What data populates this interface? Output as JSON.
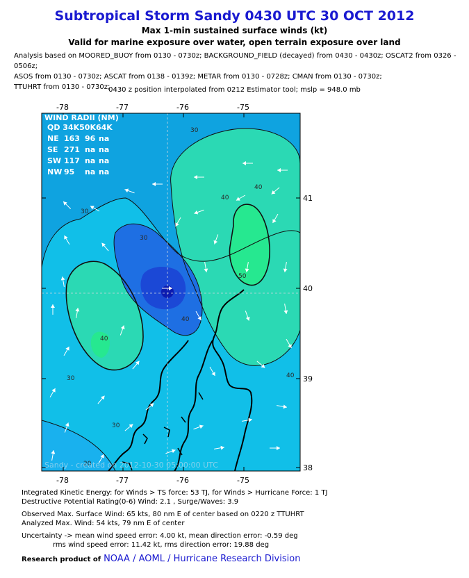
{
  "header": {
    "title": "Subtropical Storm Sandy 0430 UTC 30 OCT 2012",
    "subtitle1": "Max 1-min sustained surface winds (kt)",
    "subtitle2": "Valid for marine exposure over water, open terrain exposure over land"
  },
  "analysis": {
    "line1": "Analysis based on MOORED_BUOY from 0130 - 0730z; BACKGROUND_FIELD (decayed) from 0430 - 0430z; OSCAT2 from 0326 - 0506z;",
    "line2": "ASOS from 0130 - 0730z; ASCAT from 0138 - 0139z; METAR from 0130 - 0728z; CMAN from 0130 - 0730z;",
    "line3": "TTUHRT from 0130 - 0730z;",
    "interp": "0430 z position interpolated from 0212 Estimator tool; mslp = 948.0 mb"
  },
  "map": {
    "lon_labels": [
      "-78",
      "-77",
      "-76",
      "-75"
    ],
    "lat_labels": [
      "41",
      "40",
      "39",
      "38"
    ],
    "contour_labels": [
      "30",
      "30",
      "40",
      "30",
      "40",
      "50",
      "40",
      "30",
      "40",
      "30",
      "40",
      "20"
    ],
    "watermark": "Sandy - created on 2012-10-30 05:00:00 UTC",
    "wind_radii": {
      "title": "WIND RADII (NM)",
      "header": "QD 34K50K64K",
      "rows": [
        {
          "q": "NE",
          "r34": "163",
          "r50": "96",
          "r64": "na"
        },
        {
          "q": "SE",
          "r34": "271",
          "r50": "na",
          "r64": "na"
        },
        {
          "q": "SW",
          "r34": "117",
          "r50": "na",
          "r64": "na"
        },
        {
          "q": "NW",
          "r34": "95",
          "r50": "na",
          "r64": "na"
        }
      ]
    },
    "colors": {
      "ocean_bg": "#0fa3e0",
      "level_20": "#19b1ee",
      "level_30": "#11bfe8",
      "level_40": "#2bd9b4",
      "level_50": "#26e890",
      "calm_core": "#1e6fe3",
      "calm_inner": "#1b48d6",
      "eye": "#0c1bb0"
    }
  },
  "footer": {
    "ike": "Integrated Kinetic Energy: for Winds > TS force: 53 TJ, for Winds > Hurricane Force: 1 TJ",
    "dpr": "Destructive Potential Rating(0-6)  Wind: 2.1 , Surge/Waves: 3.9",
    "obs": "Observed Max. Surface Wind: 65 kts, 80 nm E of center based on 0220 z TTUHRT",
    "ana": "Analyzed Max. Wind: 54 kts, 79 nm  E of center",
    "unc1": "Uncertainty -> mean wind speed error: 4.00 kt, mean direction error:  -0.59 deg",
    "unc2": "rms wind speed error: 11.42 kt, rms direction error: 19.88 deg",
    "credit_prefix": "Research product of",
    "credit_org": "NOAA / AOML / Hurricane Research Division"
  }
}
